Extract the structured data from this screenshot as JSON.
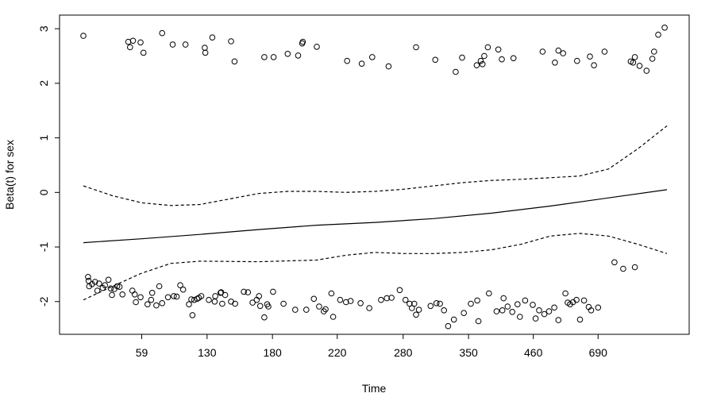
{
  "chart_data": {
    "type": "scatter",
    "xlabel": "Time",
    "ylabel": "Beta(t) for sex",
    "ylim": [
      -2.6,
      3.25
    ],
    "x_ticks": [
      {
        "label": "59",
        "rank": 0.1
      },
      {
        "label": "130",
        "rank": 0.212
      },
      {
        "label": "180",
        "rank": 0.324
      },
      {
        "label": "220",
        "rank": 0.435
      },
      {
        "label": "280",
        "rank": 0.548
      },
      {
        "label": "350",
        "rank": 0.66
      },
      {
        "label": "460",
        "rank": 0.771
      },
      {
        "label": "690",
        "rank": 0.882
      }
    ],
    "y_ticks": [
      -2,
      -1,
      0,
      1,
      2,
      3
    ],
    "grid": false,
    "legend": "none",
    "series": [
      {
        "type": "line",
        "style": "solid",
        "points": [
          [
            0.0,
            -0.92
          ],
          [
            0.1,
            -0.85
          ],
          [
            0.2,
            -0.77
          ],
          [
            0.3,
            -0.68
          ],
          [
            0.4,
            -0.6
          ],
          [
            0.5,
            -0.55
          ],
          [
            0.6,
            -0.48
          ],
          [
            0.7,
            -0.38
          ],
          [
            0.8,
            -0.25
          ],
          [
            0.9,
            -0.1
          ],
          [
            1.0,
            0.05
          ]
        ]
      },
      {
        "type": "line",
        "style": "dashed",
        "points": [
          [
            0.0,
            0.12
          ],
          [
            0.05,
            -0.06
          ],
          [
            0.1,
            -0.19
          ],
          [
            0.15,
            -0.24
          ],
          [
            0.2,
            -0.22
          ],
          [
            0.25,
            -0.12
          ],
          [
            0.3,
            -0.02
          ],
          [
            0.35,
            0.02
          ],
          [
            0.4,
            0.02
          ],
          [
            0.45,
            0.0
          ],
          [
            0.5,
            0.02
          ],
          [
            0.55,
            0.06
          ],
          [
            0.6,
            0.12
          ],
          [
            0.65,
            0.18
          ],
          [
            0.7,
            0.22
          ],
          [
            0.75,
            0.24
          ],
          [
            0.8,
            0.27
          ],
          [
            0.85,
            0.3
          ],
          [
            0.9,
            0.43
          ],
          [
            0.95,
            0.8
          ],
          [
            1.0,
            1.22
          ]
        ]
      },
      {
        "type": "line",
        "style": "dashed",
        "points": [
          [
            0.0,
            -1.97
          ],
          [
            0.05,
            -1.72
          ],
          [
            0.1,
            -1.48
          ],
          [
            0.15,
            -1.3
          ],
          [
            0.2,
            -1.26
          ],
          [
            0.3,
            -1.27
          ],
          [
            0.4,
            -1.24
          ],
          [
            0.45,
            -1.15
          ],
          [
            0.5,
            -1.1
          ],
          [
            0.55,
            -1.12
          ],
          [
            0.6,
            -1.12
          ],
          [
            0.65,
            -1.1
          ],
          [
            0.7,
            -1.05
          ],
          [
            0.75,
            -0.95
          ],
          [
            0.8,
            -0.8
          ],
          [
            0.85,
            -0.75
          ],
          [
            0.9,
            -0.8
          ],
          [
            0.95,
            -0.95
          ],
          [
            1.0,
            -1.12
          ]
        ]
      },
      {
        "type": "scatter",
        "marker": "open-circle",
        "points": [
          [
            0.0,
            2.87
          ],
          [
            0.077,
            2.76
          ],
          [
            0.08,
            2.66
          ],
          [
            0.085,
            2.78
          ],
          [
            0.098,
            2.75
          ],
          [
            0.103,
            2.56
          ],
          [
            0.135,
            2.92
          ],
          [
            0.153,
            2.71
          ],
          [
            0.175,
            2.71
          ],
          [
            0.208,
            2.65
          ],
          [
            0.209,
            2.56
          ],
          [
            0.221,
            2.84
          ],
          [
            0.253,
            2.77
          ],
          [
            0.259,
            2.4
          ],
          [
            0.31,
            2.48
          ],
          [
            0.326,
            2.48
          ],
          [
            0.35,
            2.54
          ],
          [
            0.368,
            2.51
          ],
          [
            0.375,
            2.73
          ],
          [
            0.376,
            2.76
          ],
          [
            0.4,
            2.67
          ],
          [
            0.452,
            2.41
          ],
          [
            0.477,
            2.36
          ],
          [
            0.495,
            2.48
          ],
          [
            0.523,
            2.31
          ],
          [
            0.57,
            2.66
          ],
          [
            0.603,
            2.43
          ],
          [
            0.638,
            2.21
          ],
          [
            0.649,
            2.47
          ],
          [
            0.674,
            2.33
          ],
          [
            0.681,
            2.41
          ],
          [
            0.684,
            2.35
          ],
          [
            0.687,
            2.5
          ],
          [
            0.693,
            2.66
          ],
          [
            0.711,
            2.62
          ],
          [
            0.717,
            2.44
          ],
          [
            0.737,
            2.46
          ],
          [
            0.787,
            2.58
          ],
          [
            0.808,
            2.38
          ],
          [
            0.814,
            2.6
          ],
          [
            0.822,
            2.55
          ],
          [
            0.846,
            2.41
          ],
          [
            0.868,
            2.49
          ],
          [
            0.875,
            2.33
          ],
          [
            0.893,
            2.58
          ],
          [
            0.938,
            2.4
          ],
          [
            0.942,
            2.38
          ],
          [
            0.945,
            2.48
          ],
          [
            0.953,
            2.32
          ],
          [
            0.965,
            2.23
          ],
          [
            0.975,
            2.45
          ],
          [
            0.978,
            2.58
          ],
          [
            0.985,
            2.89
          ],
          [
            0.996,
            3.02
          ],
          [
            0.008,
            -1.55
          ],
          [
            0.009,
            -1.62
          ],
          [
            0.01,
            -1.72
          ],
          [
            0.015,
            -1.68
          ],
          [
            0.02,
            -1.64
          ],
          [
            0.024,
            -1.8
          ],
          [
            0.027,
            -1.67
          ],
          [
            0.033,
            -1.75
          ],
          [
            0.037,
            -1.7
          ],
          [
            0.043,
            -1.6
          ],
          [
            0.047,
            -1.76
          ],
          [
            0.049,
            -1.88
          ],
          [
            0.053,
            -1.77
          ],
          [
            0.058,
            -1.72
          ],
          [
            0.062,
            -1.73
          ],
          [
            0.067,
            -1.87
          ],
          [
            0.084,
            -1.8
          ],
          [
            0.088,
            -1.87
          ],
          [
            0.09,
            -2.01
          ],
          [
            0.098,
            -1.92
          ],
          [
            0.11,
            -2.05
          ],
          [
            0.116,
            -1.97
          ],
          [
            0.118,
            -1.84
          ],
          [
            0.125,
            -2.07
          ],
          [
            0.13,
            -1.72
          ],
          [
            0.135,
            -2.03
          ],
          [
            0.145,
            -1.92
          ],
          [
            0.155,
            -1.9
          ],
          [
            0.16,
            -1.91
          ],
          [
            0.166,
            -1.7
          ],
          [
            0.171,
            -1.78
          ],
          [
            0.181,
            -2.05
          ],
          [
            0.185,
            -1.96
          ],
          [
            0.187,
            -2.25
          ],
          [
            0.19,
            -1.97
          ],
          [
            0.195,
            -1.95
          ],
          [
            0.198,
            -1.93
          ],
          [
            0.202,
            -1.9
          ],
          [
            0.215,
            -1.97
          ],
          [
            0.225,
            -2.0
          ],
          [
            0.226,
            -1.9
          ],
          [
            0.235,
            -1.84
          ],
          [
            0.236,
            -1.83
          ],
          [
            0.238,
            -2.04
          ],
          [
            0.243,
            -1.88
          ],
          [
            0.253,
            -2.0
          ],
          [
            0.26,
            -2.04
          ],
          [
            0.275,
            -1.82
          ],
          [
            0.282,
            -1.83
          ],
          [
            0.29,
            -2.02
          ],
          [
            0.297,
            -1.97
          ],
          [
            0.301,
            -1.9
          ],
          [
            0.303,
            -2.08
          ],
          [
            0.31,
            -2.29
          ],
          [
            0.315,
            -2.05
          ],
          [
            0.317,
            -2.09
          ],
          [
            0.325,
            -1.82
          ],
          [
            0.343,
            -2.04
          ],
          [
            0.363,
            -2.15
          ],
          [
            0.382,
            -2.15
          ],
          [
            0.395,
            -1.95
          ],
          [
            0.404,
            -2.09
          ],
          [
            0.412,
            -2.18
          ],
          [
            0.415,
            -2.14
          ],
          [
            0.425,
            -1.85
          ],
          [
            0.428,
            -2.28
          ],
          [
            0.44,
            -1.97
          ],
          [
            0.45,
            -2.01
          ],
          [
            0.458,
            -1.99
          ],
          [
            0.475,
            -2.03
          ],
          [
            0.49,
            -2.12
          ],
          [
            0.51,
            -1.97
          ],
          [
            0.52,
            -1.94
          ],
          [
            0.528,
            -1.93
          ],
          [
            0.542,
            -1.79
          ],
          [
            0.552,
            -1.97
          ],
          [
            0.559,
            -2.04
          ],
          [
            0.563,
            -2.12
          ],
          [
            0.567,
            -2.04
          ],
          [
            0.57,
            -2.24
          ],
          [
            0.575,
            -2.15
          ],
          [
            0.595,
            -2.08
          ],
          [
            0.605,
            -2.03
          ],
          [
            0.611,
            -2.04
          ],
          [
            0.618,
            -2.16
          ],
          [
            0.625,
            -2.45
          ],
          [
            0.635,
            -2.33
          ],
          [
            0.652,
            -2.21
          ],
          [
            0.664,
            -2.04
          ],
          [
            0.675,
            -1.98
          ],
          [
            0.677,
            -2.36
          ],
          [
            0.695,
            -1.85
          ],
          [
            0.708,
            -2.18
          ],
          [
            0.718,
            -2.16
          ],
          [
            0.72,
            -1.94
          ],
          [
            0.727,
            -2.09
          ],
          [
            0.735,
            -2.19
          ],
          [
            0.744,
            -2.05
          ],
          [
            0.748,
            -2.28
          ],
          [
            0.757,
            -1.98
          ],
          [
            0.77,
            -2.06
          ],
          [
            0.775,
            -2.31
          ],
          [
            0.781,
            -2.16
          ],
          [
            0.79,
            -2.23
          ],
          [
            0.798,
            -2.18
          ],
          [
            0.807,
            -2.11
          ],
          [
            0.814,
            -2.34
          ],
          [
            0.826,
            -1.85
          ],
          [
            0.83,
            -2.02
          ],
          [
            0.834,
            -2.05
          ],
          [
            0.839,
            -2.01
          ],
          [
            0.845,
            -1.97
          ],
          [
            0.851,
            -2.33
          ],
          [
            0.858,
            -1.98
          ],
          [
            0.866,
            -2.1
          ],
          [
            0.87,
            -2.16
          ],
          [
            0.882,
            -2.11
          ],
          [
            0.91,
            -1.28
          ],
          [
            0.925,
            -1.4
          ],
          [
            0.945,
            -1.37
          ]
        ]
      }
    ]
  }
}
